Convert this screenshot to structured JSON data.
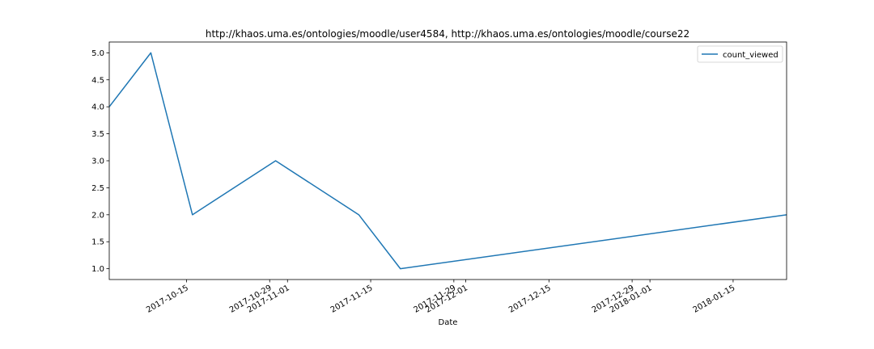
{
  "chart_data": {
    "type": "line",
    "title": "http://khaos.uma.es/ontologies/moodle/user4584, http://khaos.uma.es/ontologies/moodle/course22",
    "xlabel": "Date",
    "ylabel": "",
    "x_type": "date",
    "xlim": [
      "2017-10-02",
      "2018-01-24"
    ],
    "ylim": [
      0.8,
      5.2
    ],
    "x_ticks": [
      "2017-10-15",
      "2017-10-29",
      "2017-11-01",
      "2017-11-15",
      "2017-11-29",
      "2017-12-01",
      "2017-12-15",
      "2017-12-29",
      "2018-01-01",
      "2018-01-15"
    ],
    "y_ticks": [
      "1.0",
      "1.5",
      "2.0",
      "2.5",
      "3.0",
      "3.5",
      "4.0",
      "4.5",
      "5.0"
    ],
    "grid": false,
    "legend": "top-right",
    "series": [
      {
        "name": "count_viewed",
        "color": "#1f77b4",
        "x": [
          "2017-10-02",
          "2017-10-09",
          "2017-10-16",
          "2017-10-30",
          "2017-11-13",
          "2017-11-20",
          "2018-01-24"
        ],
        "y": [
          4,
          5,
          2,
          3,
          2,
          1,
          2
        ]
      }
    ]
  }
}
